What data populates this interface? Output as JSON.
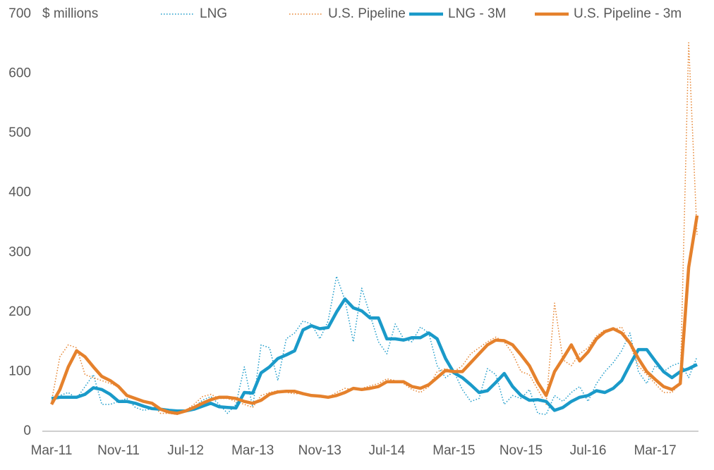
{
  "chart_data": {
    "type": "line",
    "y_unit_label": "$ millions",
    "categories": [
      "Mar-11",
      null,
      null,
      null,
      null,
      null,
      null,
      null,
      "Nov-11",
      null,
      null,
      null,
      null,
      null,
      null,
      null,
      "Jul-12",
      null,
      null,
      null,
      null,
      null,
      null,
      null,
      "Mar-13",
      null,
      null,
      null,
      null,
      null,
      null,
      null,
      "Nov-13",
      null,
      null,
      null,
      null,
      null,
      null,
      null,
      "Jul-14",
      null,
      null,
      null,
      null,
      null,
      null,
      null,
      "Mar-15",
      null,
      null,
      null,
      null,
      null,
      null,
      null,
      "Nov-15",
      null,
      null,
      null,
      null,
      null,
      null,
      null,
      "Jul-16",
      null,
      null,
      null,
      null,
      null,
      null,
      null,
      "Mar-17",
      null,
      null,
      null,
      null,
      null
    ],
    "ylim": [
      0,
      700
    ],
    "yticks": [
      0,
      100,
      200,
      300,
      400,
      500,
      600,
      700
    ],
    "grid": false,
    "series": [
      {
        "name": "LNG",
        "color": "#1a9ac9",
        "line_style": "dotted",
        "values": [
          50,
          60,
          65,
          55,
          75,
          95,
          45,
          45,
          50,
          55,
          40,
          35,
          38,
          38,
          37,
          33,
          35,
          40,
          52,
          58,
          45,
          30,
          45,
          108,
          40,
          145,
          140,
          85,
          155,
          165,
          185,
          180,
          155,
          185,
          260,
          220,
          150,
          240,
          195,
          150,
          130,
          180,
          155,
          150,
          175,
          165,
          110,
          90,
          100,
          70,
          50,
          55,
          105,
          95,
          45,
          60,
          55,
          70,
          30,
          28,
          60,
          50,
          65,
          75,
          50,
          80,
          100,
          115,
          135,
          165,
          100,
          80,
          110,
          100,
          110,
          115,
          90,
          125
        ]
      },
      {
        "name": "U.S. Pipeline",
        "color": "#e5812c",
        "line_style": "dotted",
        "values": [
          50,
          125,
          145,
          140,
          95,
          90,
          85,
          80,
          75,
          60,
          55,
          50,
          45,
          30,
          30,
          28,
          35,
          45,
          58,
          62,
          55,
          55,
          50,
          45,
          40,
          60,
          65,
          68,
          65,
          63,
          63,
          60,
          57,
          57,
          65,
          72,
          70,
          72,
          76,
          80,
          88,
          85,
          80,
          70,
          65,
          75,
          100,
          105,
          100,
          110,
          130,
          140,
          150,
          158,
          150,
          130,
          100,
          95,
          70,
          45,
          215,
          120,
          110,
          130,
          140,
          160,
          170,
          170,
          175,
          145,
          110,
          95,
          80,
          65,
          65,
          80,
          652,
          330
        ]
      },
      {
        "name": "LNG - 3M",
        "color": "#1a9ac9",
        "line_style": "solid",
        "values": [
          55,
          57,
          57,
          57,
          62,
          73,
          70,
          62,
          50,
          50,
          47,
          42,
          38,
          37,
          35,
          34,
          34,
          37,
          42,
          47,
          41,
          40,
          39,
          65,
          64,
          98,
          108,
          122,
          128,
          135,
          170,
          177,
          172,
          174,
          200,
          222,
          207,
          202,
          190,
          190,
          155,
          155,
          153,
          157,
          157,
          165,
          155,
          122,
          98,
          90,
          78,
          65,
          68,
          82,
          97,
          75,
          60,
          52,
          53,
          50,
          35,
          40,
          50,
          57,
          60,
          68,
          65,
          72,
          85,
          112,
          137,
          137,
          118,
          100,
          90,
          100,
          105,
          112
        ]
      },
      {
        "name": "U.S. Pipeline - 3m",
        "color": "#e5812c",
        "line_style": "solid",
        "values": [
          45,
          70,
          108,
          135,
          125,
          108,
          92,
          85,
          75,
          60,
          55,
          50,
          47,
          37,
          32,
          30,
          34,
          40,
          47,
          53,
          57,
          57,
          55,
          50,
          47,
          52,
          62,
          66,
          67,
          67,
          63,
          60,
          59,
          57,
          60,
          65,
          72,
          70,
          72,
          75,
          83,
          83,
          83,
          75,
          72,
          78,
          90,
          102,
          100,
          100,
          115,
          130,
          145,
          153,
          152,
          145,
          128,
          110,
          82,
          60,
          100,
          122,
          145,
          118,
          133,
          155,
          167,
          172,
          165,
          148,
          122,
          100,
          87,
          75,
          70,
          80,
          275,
          362
        ]
      }
    ]
  }
}
